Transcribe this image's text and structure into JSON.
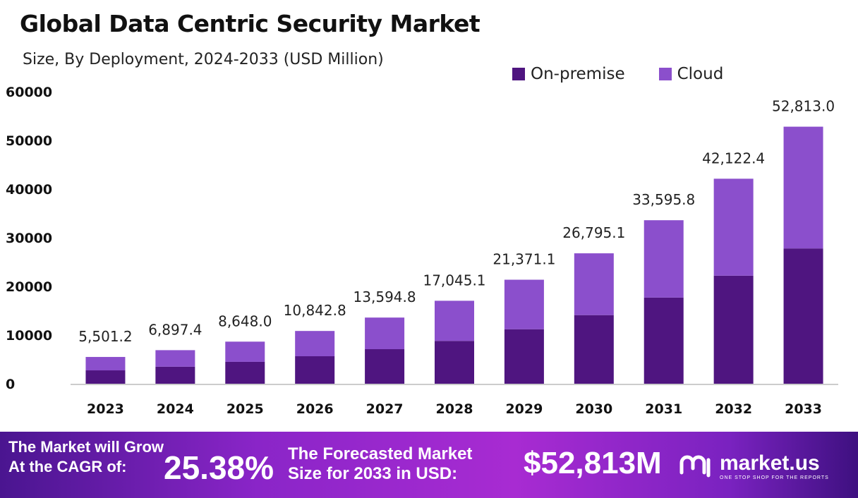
{
  "title": "Global Data Centric Security Market",
  "subtitle": "Size, By Deployment, 2024-2033 (USD Million)",
  "chart_data": {
    "type": "bar",
    "stacked": true,
    "categories": [
      "2023",
      "2024",
      "2025",
      "2026",
      "2027",
      "2028",
      "2029",
      "2030",
      "2031",
      "2032",
      "2033"
    ],
    "series": [
      {
        "name": "On-premise",
        "color": "#4f1580",
        "values": [
          2750,
          3500,
          4500,
          5650,
          7100,
          8800,
          11200,
          14100,
          17700,
          22200,
          27800
        ]
      },
      {
        "name": "Cloud",
        "color": "#8b4fcc",
        "values": [
          2751.2,
          3397.4,
          4148.0,
          5192.8,
          6494.8,
          8245.1,
          10171.1,
          12695.1,
          15895.8,
          19922.4,
          25013.0
        ]
      }
    ],
    "totals": [
      5501.2,
      6897.4,
      8648.0,
      10842.8,
      13594.8,
      17045.1,
      21371.1,
      26795.1,
      33595.8,
      42122.4,
      52813.0
    ],
    "total_labels": [
      "5,501.2",
      "6,897.4",
      "8,648.0",
      "10,842.8",
      "13,594.8",
      "17,045.1",
      "21,371.1",
      "26,795.1",
      "33,595.8",
      "42,122.4",
      "52,813.0"
    ],
    "yticks": [
      "0",
      "10000",
      "20000",
      "30000",
      "40000",
      "50000",
      "60000"
    ],
    "ylim": [
      0,
      60000
    ],
    "legend_placement": "top-right",
    "grid": false
  },
  "footer": {
    "grow_line1": "The Market will Grow",
    "grow_line2": "At the CAGR of:",
    "cagr": "25.38%",
    "forecast_line1": "The Forecasted Market",
    "forecast_line2": "Size for 2033 in USD:",
    "forecast_value": "$52,813M",
    "logo": "market.us",
    "tagline": "ONE STOP SHOP FOR THE REPORTS"
  }
}
